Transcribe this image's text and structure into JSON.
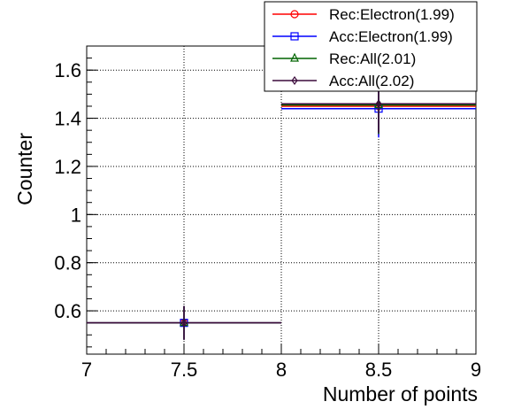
{
  "chart_data": {
    "type": "scatter",
    "xlabel": "Number of points",
    "ylabel": "Counter",
    "xlim": [
      7,
      9
    ],
    "ylim": [
      0.42,
      1.7
    ],
    "x_ticks": [
      "7",
      "7.5",
      "8",
      "8.5",
      "9"
    ],
    "y_ticks": [
      "0.6",
      "0.8",
      "1",
      "1.2",
      "1.4",
      "1.6"
    ],
    "bin_edges": [
      7,
      8,
      9
    ],
    "grid": true,
    "legend_position": "top-right",
    "series": [
      {
        "name": "Rec:Electron(1.99)",
        "color": "#ff0000",
        "marker": "circle",
        "x": [
          7.5,
          8.5
        ],
        "y": [
          0.55,
          1.45
        ],
        "yerr": [
          0.07,
          0.12
        ],
        "xerr": [
          0.5,
          0.5
        ]
      },
      {
        "name": "Acc:Electron(1.99)",
        "color": "#0000ff",
        "marker": "square",
        "x": [
          7.5,
          8.5
        ],
        "y": [
          0.55,
          1.44
        ],
        "yerr": [
          0.07,
          0.12
        ],
        "xerr": [
          0.5,
          0.5
        ]
      },
      {
        "name": "Rec:All(2.01)",
        "color": "#006400",
        "marker": "triangle",
        "x": [
          7.5,
          8.5
        ],
        "y": [
          0.55,
          1.455
        ],
        "yerr": [
          0.07,
          0.12
        ],
        "xerr": [
          0.5,
          0.5
        ]
      },
      {
        "name": "Acc:All(2.02)",
        "color": "#3b0a3b",
        "marker": "diamond",
        "x": [
          7.5,
          8.5
        ],
        "y": [
          0.55,
          1.46
        ],
        "yerr": [
          0.07,
          0.12
        ],
        "xerr": [
          0.5,
          0.5
        ]
      }
    ]
  }
}
